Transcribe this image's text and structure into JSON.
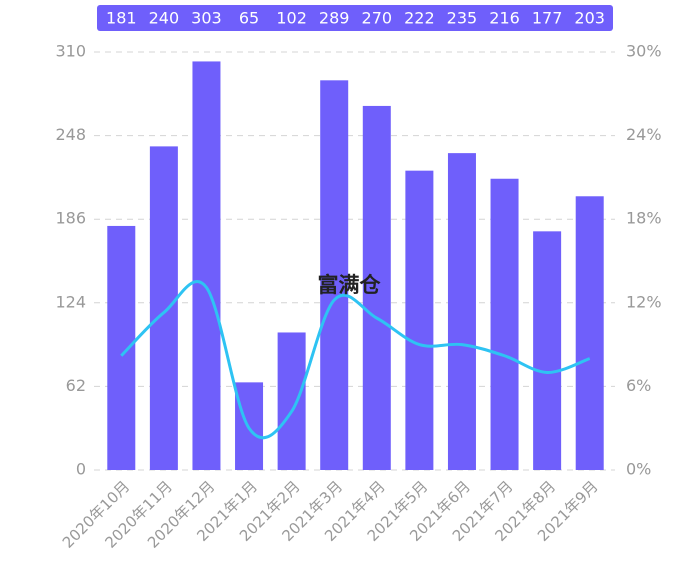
{
  "chart_data": {
    "type": "bar",
    "annotation": "富满仓",
    "categories": [
      "2020年10月",
      "2020年11月",
      "2020年12月",
      "2021年1月",
      "2021年2月",
      "2021年3月",
      "2021年4月",
      "2021年5月",
      "2021年6月",
      "2021年7月",
      "2021年8月",
      "2021年9月"
    ],
    "series": [
      {
        "type": "bar",
        "color": "#6f5ffb",
        "values": [
          181,
          240,
          303,
          65,
          102,
          289,
          270,
          222,
          235,
          216,
          177,
          203
        ]
      },
      {
        "type": "line",
        "axis": "y2",
        "color": "#2ec3f3",
        "values": [
          8.2,
          11.3,
          13.1,
          3.0,
          4.2,
          12.2,
          10.9,
          9.0,
          9.0,
          8.2,
          7.0,
          8.0
        ]
      }
    ],
    "ylim": [
      0,
      310
    ],
    "yticks": [
      0,
      62,
      124,
      186,
      248,
      310
    ],
    "y2lim": [
      0,
      30
    ],
    "y2ticks": [
      {
        "value": 0,
        "label": "0%"
      },
      {
        "value": 6,
        "label": "6%"
      },
      {
        "value": 12,
        "label": "12%"
      },
      {
        "value": 18,
        "label": "18%"
      },
      {
        "value": 24,
        "label": "24%"
      },
      {
        "value": 30,
        "label": "30%"
      }
    ],
    "grid": true
  }
}
